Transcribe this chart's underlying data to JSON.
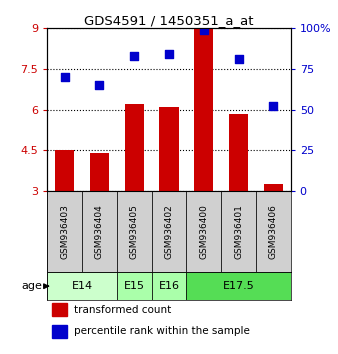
{
  "title": "GDS4591 / 1450351_a_at",
  "samples": [
    "GSM936403",
    "GSM936404",
    "GSM936405",
    "GSM936402",
    "GSM936400",
    "GSM936401",
    "GSM936406"
  ],
  "transformed_count": [
    4.5,
    4.4,
    6.2,
    6.1,
    9.0,
    5.85,
    3.25
  ],
  "percentile_rank": [
    70,
    65,
    83,
    84,
    99,
    81,
    52
  ],
  "age_groups": [
    {
      "label": "E14",
      "start": 0,
      "end": 2,
      "color": "#ccffcc"
    },
    {
      "label": "E15",
      "start": 2,
      "end": 3,
      "color": "#aaffaa"
    },
    {
      "label": "E16",
      "start": 3,
      "end": 4,
      "color": "#aaffaa"
    },
    {
      "label": "E17.5",
      "start": 4,
      "end": 7,
      "color": "#55dd55"
    }
  ],
  "left_ylim": [
    3,
    9
  ],
  "left_yticks": [
    3,
    4.5,
    6,
    7.5,
    9
  ],
  "right_ylim": [
    0,
    100
  ],
  "right_yticks": [
    0,
    25,
    50,
    75,
    100
  ],
  "right_yticklabels": [
    "0",
    "25",
    "50",
    "75",
    "100%"
  ],
  "bar_color": "#cc0000",
  "dot_color": "#0000cc",
  "bar_width": 0.55,
  "dot_size": 40,
  "background_color": "#ffffff",
  "left_tick_color": "#cc0000",
  "right_tick_color": "#0000cc",
  "age_label": "age",
  "sample_box_color": "#d0d0d0",
  "legend_items": [
    {
      "color": "#cc0000",
      "label": "transformed count"
    },
    {
      "color": "#0000cc",
      "label": "percentile rank within the sample"
    }
  ]
}
